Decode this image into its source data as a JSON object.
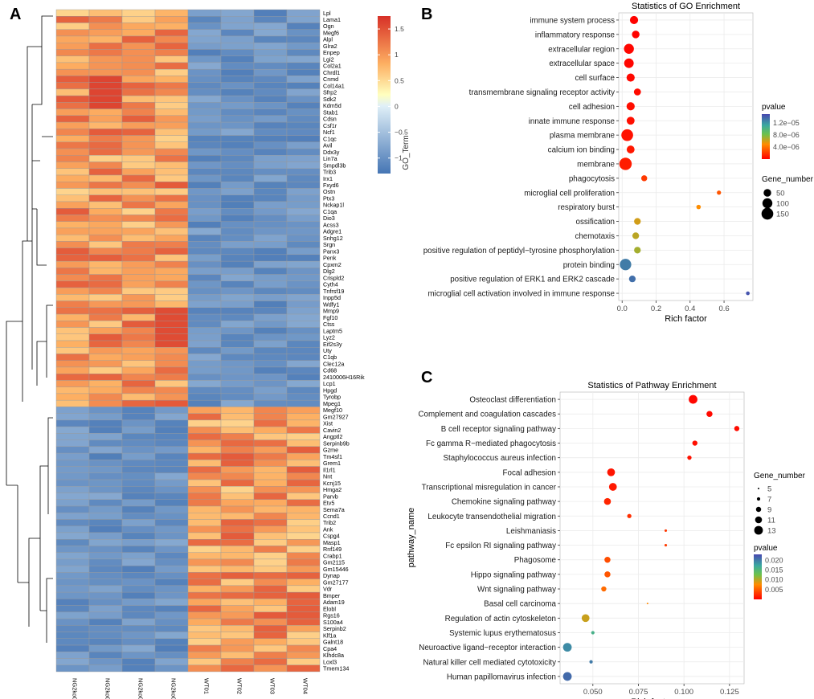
{
  "panels": {
    "A": "A",
    "B": "B",
    "C": "C"
  },
  "chart_data": [
    {
      "panel": "A",
      "type": "heatmap",
      "title": "",
      "samples": [
        "NG2ko01",
        "NG2ko02",
        "NG2ko03",
        "NG2ko04",
        "WT01",
        "WT02",
        "WT03",
        "WT04"
      ],
      "genes": [
        "Lpl",
        "Lama1",
        "Ogn",
        "Megf6",
        "Alpl",
        "Glra2",
        "Enpep",
        "Lgi2",
        "Col2a1",
        "Chrdl1",
        "Cnmd",
        "Col14a1",
        "Sfrp2",
        "Sdk2",
        "Kdm5d",
        "Stab1",
        "Cdsn",
        "Csf1r",
        "Ncf1",
        "C1qc",
        "Avil",
        "Ddx3y",
        "Lin7a",
        "Smpdl3b",
        "Trib3",
        "Irx1",
        "Fxyd6",
        "Ostn",
        "Ptx3",
        "Nckap1l",
        "C1qa",
        "Dio3",
        "Acss3",
        "Adgre1",
        "Snhg12",
        "Srgn",
        "Panx3",
        "Penk",
        "Cpxm2",
        "Dlg2",
        "Crispld2",
        "Cyth4",
        "Tnfrsf19",
        "Inpp5d",
        "Wdfy1",
        "Mmp9",
        "Fgf10",
        "Ctss",
        "Laptm5",
        "Lyz2",
        "Eif2s3y",
        "Uty",
        "C1qb",
        "Clec12a",
        "Cd68",
        "2410006H16Rik",
        "Lcp1",
        "Hpgd",
        "Tyrobp",
        "Mpeg1",
        "Megf10",
        "Gm27927",
        "Xist",
        "Cavin2",
        "Angptl2",
        "Serpinb9b",
        "Gzme",
        "Tm4sf1",
        "Grem1",
        "Il1rl1",
        "Nnt",
        "Kcnj15",
        "Hmga2",
        "Parvb",
        "Etv5",
        "Sema7a",
        "Ccnd1",
        "Trib2",
        "Ank",
        "Cspg4",
        "Masp1",
        "Rnf149",
        "Crabp1",
        "Gm2115",
        "Gm15446",
        "Dynap",
        "Gm27177",
        "Vdr",
        "Bmper",
        "Adam19",
        "Elobl",
        "Rgs16",
        "S100a4",
        "Serpinb2",
        "Klf1a",
        "Galnt18",
        "Cpa4",
        "Klhdc8a",
        "Loxl3",
        "Tmem134"
      ],
      "color_scale": {
        "title": "GO_Term",
        "range": [
          -1.3,
          1.75
        ],
        "ticks": [
          1.5,
          1,
          0.5,
          0,
          -0.5,
          -1
        ],
        "tick_labels": [
          "1.5",
          "1",
          "0.5",
          "0",
          "−0.5",
          "−1"
        ],
        "low_color": "#4575b4",
        "mid_color": "#ffffbf",
        "high_color": "#d73027"
      }
    },
    {
      "panel": "B",
      "type": "scatter",
      "title": "Statistics of GO Enrichment",
      "xlabel": "Rich factor",
      "ylabel": "",
      "xlim": [
        -0.02,
        0.77
      ],
      "xticks": [
        0.0,
        0.2,
        0.4,
        0.6
      ],
      "xtick_labels": [
        "0.0",
        "0.2",
        "0.4",
        "0.6"
      ],
      "terms": [
        {
          "name": "immune system process",
          "x": 0.07,
          "gene_number": 60,
          "pvalue": 1e-07
        },
        {
          "name": "inflammatory response",
          "x": 0.08,
          "gene_number": 50,
          "pvalue": 1e-07
        },
        {
          "name": "extracellular region",
          "x": 0.04,
          "gene_number": 100,
          "pvalue": 2e-07
        },
        {
          "name": "extracellular space",
          "x": 0.04,
          "gene_number": 90,
          "pvalue": 2e-07
        },
        {
          "name": "cell surface",
          "x": 0.05,
          "gene_number": 60,
          "pvalue": 3e-07
        },
        {
          "name": "transmembrane signaling receptor activity",
          "x": 0.09,
          "gene_number": 40,
          "pvalue": 4e-07
        },
        {
          "name": "cell adhesion",
          "x": 0.05,
          "gene_number": 60,
          "pvalue": 5e-07
        },
        {
          "name": "innate immune response",
          "x": 0.05,
          "gene_number": 55,
          "pvalue": 5e-07
        },
        {
          "name": "plasma membrane",
          "x": 0.03,
          "gene_number": 150,
          "pvalue": 6e-07
        },
        {
          "name": "calcium ion binding",
          "x": 0.05,
          "gene_number": 55,
          "pvalue": 8e-07
        },
        {
          "name": "membrane",
          "x": 0.02,
          "gene_number": 170,
          "pvalue": 1e-06
        },
        {
          "name": "phagocytosis",
          "x": 0.13,
          "gene_number": 25,
          "pvalue": 2e-06
        },
        {
          "name": "microglial cell proliferation",
          "x": 0.57,
          "gene_number": 8,
          "pvalue": 3e-06
        },
        {
          "name": "respiratory burst",
          "x": 0.45,
          "gene_number": 10,
          "pvalue": 5e-06
        },
        {
          "name": "ossification",
          "x": 0.09,
          "gene_number": 35,
          "pvalue": 6e-06
        },
        {
          "name": "chemotaxis",
          "x": 0.08,
          "gene_number": 35,
          "pvalue": 6.5e-06
        },
        {
          "name": "positive regulation of peptidyl−tyrosine phosphorylation",
          "x": 0.09,
          "gene_number": 35,
          "pvalue": 7e-06
        },
        {
          "name": "protein binding",
          "x": 0.02,
          "gene_number": 140,
          "pvalue": 1.3e-05
        },
        {
          "name": "positive regulation of ERK1 and ERK2 cascade",
          "x": 0.06,
          "gene_number": 35,
          "pvalue": 1.35e-05
        },
        {
          "name": "microglial cell activation involved in immune response",
          "x": 0.74,
          "gene_number": 5,
          "pvalue": 1.45e-05
        }
      ],
      "legend": {
        "color_title": "pvalue",
        "color_ticks": [
          "1.2e−05",
          "8.0e−06",
          "4.0e−06"
        ],
        "color_tick_values": [
          1.2e-05,
          8e-06,
          4e-06
        ],
        "color_range": [
          0,
          1.5e-05
        ],
        "size_title": "Gene_number",
        "size_ticks": [
          "50",
          "100",
          "150"
        ],
        "size_tick_values": [
          50,
          100,
          150
        ]
      }
    },
    {
      "panel": "C",
      "type": "scatter",
      "title": "Statistics of Pathway Enrichment",
      "xlabel": "Rich factor",
      "ylabel": "pathway_name",
      "xlim": [
        0.032,
        0.133
      ],
      "xticks": [
        0.05,
        0.075,
        0.1,
        0.125
      ],
      "xtick_labels": [
        "0.050",
        "0.075",
        "0.100",
        "0.125"
      ],
      "pathways": [
        {
          "name": "Osteoclast differentiation",
          "x": 0.105,
          "gene_number": 13,
          "pvalue": 0.0004
        },
        {
          "name": "Complement and coagulation cascades",
          "x": 0.114,
          "gene_number": 10,
          "pvalue": 0.0005
        },
        {
          "name": "B cell receptor signaling pathway",
          "x": 0.129,
          "gene_number": 9,
          "pvalue": 0.0006
        },
        {
          "name": "Fc gamma R−mediated phagocytosis",
          "x": 0.106,
          "gene_number": 9,
          "pvalue": 0.0008
        },
        {
          "name": "Staphylococcus aureus infection",
          "x": 0.103,
          "gene_number": 8,
          "pvalue": 0.0009
        },
        {
          "name": "Focal adhesion",
          "x": 0.06,
          "gene_number": 12,
          "pvalue": 0.0011
        },
        {
          "name": "Transcriptional misregulation in cancer",
          "x": 0.061,
          "gene_number": 12,
          "pvalue": 0.0013
        },
        {
          "name": "Chemokine signaling pathway",
          "x": 0.058,
          "gene_number": 11,
          "pvalue": 0.002
        },
        {
          "name": "Leukocyte transendothelial migration",
          "x": 0.07,
          "gene_number": 8,
          "pvalue": 0.0025
        },
        {
          "name": "Leishmaniasis",
          "x": 0.09,
          "gene_number": 6,
          "pvalue": 0.003
        },
        {
          "name": "Fc epsilon RI signaling pathway",
          "x": 0.09,
          "gene_number": 6,
          "pvalue": 0.0032
        },
        {
          "name": "Phagosome",
          "x": 0.058,
          "gene_number": 10,
          "pvalue": 0.0042
        },
        {
          "name": "Hippo signaling pathway",
          "x": 0.058,
          "gene_number": 10,
          "pvalue": 0.0046
        },
        {
          "name": "Wnt signaling pathway",
          "x": 0.056,
          "gene_number": 9,
          "pvalue": 0.0058
        },
        {
          "name": "Basal cell carcinoma",
          "x": 0.08,
          "gene_number": 5,
          "pvalue": 0.0075
        },
        {
          "name": "Regulation of actin cytoskeleton",
          "x": 0.046,
          "gene_number": 12,
          "pvalue": 0.0095
        },
        {
          "name": "Systemic lupus erythematosus",
          "x": 0.05,
          "gene_number": 7,
          "pvalue": 0.016
        },
        {
          "name": "Neuroactive ligand−receptor interaction",
          "x": 0.036,
          "gene_number": 13,
          "pvalue": 0.019
        },
        {
          "name": "Natural killer cell mediated cytotoxicity",
          "x": 0.049,
          "gene_number": 7,
          "pvalue": 0.02
        },
        {
          "name": "Human papillomavirus infection",
          "x": 0.036,
          "gene_number": 13,
          "pvalue": 0.021
        }
      ],
      "legend": {
        "size_title": "Gene_number",
        "size_ticks": [
          "5",
          "7",
          "9",
          "11",
          "13"
        ],
        "size_tick_values": [
          5,
          7,
          9,
          11,
          13
        ],
        "color_title": "pvalue",
        "color_ticks": [
          "0.020",
          "0.015",
          "0.010",
          "0.005"
        ],
        "color_tick_values": [
          0.02,
          0.015,
          0.01,
          0.005
        ],
        "color_range": [
          0,
          0.023
        ]
      }
    }
  ]
}
